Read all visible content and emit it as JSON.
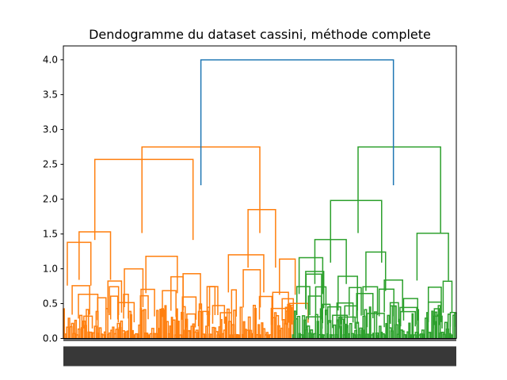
{
  "chart_data": {
    "type": "dendrogram",
    "title": "Dendogramme du dataset cassini, méthode complete",
    "xlabel": "",
    "ylabel": "",
    "ylim": [
      0,
      4.2
    ],
    "yticks": [
      "0.0",
      "0.5",
      "1.0",
      "1.5",
      "2.0",
      "2.5",
      "3.0",
      "3.5",
      "4.0"
    ],
    "ytick_values": [
      0,
      0.5,
      1.0,
      1.5,
      2.0,
      2.5,
      3.0,
      3.5,
      4.0
    ],
    "grid": false,
    "leaf_count_approx": 500,
    "leaf_labels_legible": false,
    "clusters": [
      {
        "name": "orange",
        "color": "#ff7f0e",
        "share_of_leaves": 0.58
      },
      {
        "name": "green",
        "color": "#2ca02c",
        "share_of_leaves": 0.42
      }
    ],
    "link_color_above_threshold": "#1f77b4",
    "merges": [
      {
        "height": 4.0,
        "cluster": "blue",
        "left_x": 0.35,
        "right_x": 0.84
      },
      {
        "height": 2.75,
        "cluster": "orange",
        "left_x": 0.2,
        "right_x": 0.5
      },
      {
        "height": 2.57,
        "cluster": "orange",
        "left_x": 0.08,
        "right_x": 0.33
      },
      {
        "height": 1.85,
        "cluster": "orange",
        "left_x": 0.47,
        "right_x": 0.54
      },
      {
        "height": 1.53,
        "cluster": "orange",
        "left_x": 0.04,
        "right_x": 0.12
      },
      {
        "height": 1.38,
        "cluster": "orange",
        "left_x": 0.01,
        "right_x": 0.07
      },
      {
        "height": 1.18,
        "cluster": "orange",
        "left_x": 0.21,
        "right_x": 0.29
      },
      {
        "height": 1.2,
        "cluster": "orange",
        "left_x": 0.42,
        "right_x": 0.51
      },
      {
        "height": 1.14,
        "cluster": "orange",
        "left_x": 0.55,
        "right_x": 0.59
      },
      {
        "height": 2.75,
        "cluster": "green",
        "left_x": 0.75,
        "right_x": 0.96
      },
      {
        "height": 1.98,
        "cluster": "green",
        "left_x": 0.68,
        "right_x": 0.81
      },
      {
        "height": 1.51,
        "cluster": "green",
        "left_x": 0.9,
        "right_x": 0.98
      },
      {
        "height": 1.42,
        "cluster": "green",
        "left_x": 0.64,
        "right_x": 0.72
      },
      {
        "height": 1.24,
        "cluster": "green",
        "left_x": 0.77,
        "right_x": 0.82
      },
      {
        "height": 1.16,
        "cluster": "green",
        "left_x": 0.6,
        "right_x": 0.66
      }
    ]
  }
}
